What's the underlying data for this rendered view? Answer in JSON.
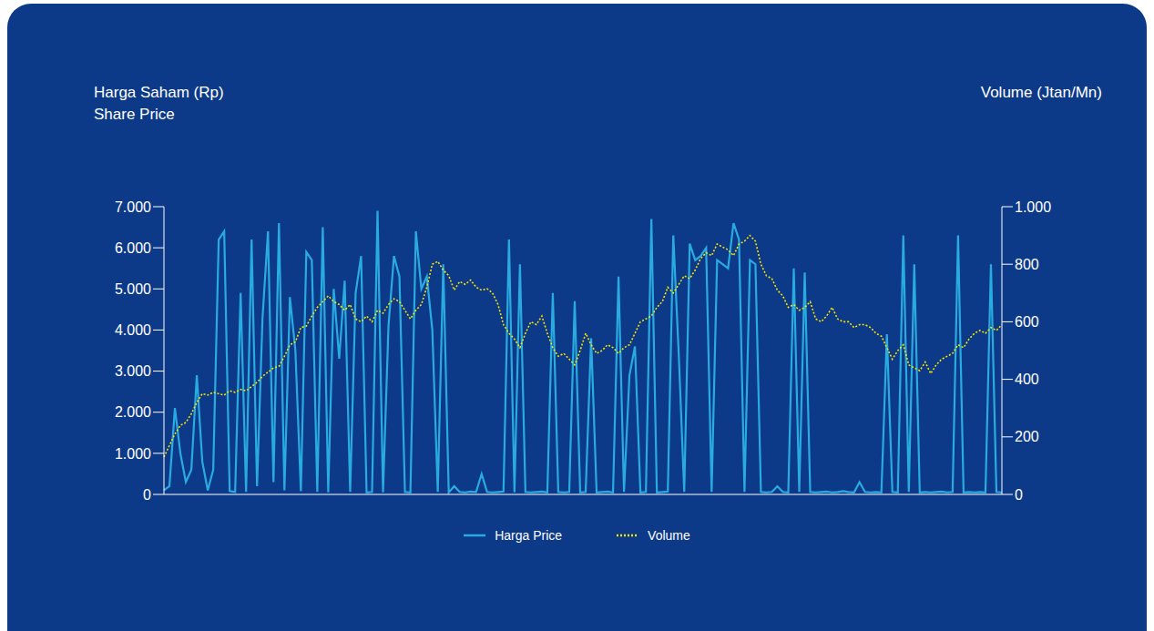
{
  "chart_data": {
    "type": "line",
    "y_label": "Harga Saham (Rp)",
    "y_label_en": "Share Price",
    "y2_label": "Volume (Jtan/Mn)",
    "categories": [
      null,
      null,
      null,
      null,
      null,
      null,
      null,
      null,
      null,
      null,
      null,
      null,
      null,
      null,
      null,
      null,
      null,
      null,
      null,
      null,
      null,
      null,
      null,
      null,
      null,
      null,
      null,
      null,
      null,
      null,
      null,
      null,
      null,
      null,
      null,
      null,
      null,
      null,
      null,
      null,
      null,
      null,
      null,
      null,
      null,
      null,
      null,
      null,
      null,
      null,
      null,
      null,
      null,
      null,
      null,
      null,
      null,
      null,
      null,
      null,
      null,
      null,
      null,
      null,
      null,
      null,
      null,
      null,
      null,
      null,
      null,
      null,
      null,
      null,
      null,
      null,
      null,
      null,
      null,
      null,
      null,
      null,
      null,
      null,
      null,
      null,
      null,
      null,
      null,
      null,
      null,
      null,
      null,
      null,
      null,
      null,
      null,
      null,
      null,
      null,
      null,
      null,
      null,
      null,
      null,
      null,
      null,
      null,
      null,
      null,
      null,
      null,
      null,
      null,
      null,
      null,
      null,
      null,
      null,
      null,
      null,
      null,
      null,
      null,
      null,
      null,
      null,
      null,
      null,
      null,
      null,
      null,
      null,
      null,
      null,
      null,
      null,
      null,
      null,
      null,
      null,
      null,
      null,
      null,
      null,
      null,
      null,
      null,
      null,
      null,
      null,
      null,
      null,
      null
    ],
    "series": [
      {
        "name": "Harga Price",
        "color": "#29abe2",
        "line_style": "solid",
        "values": [
          100,
          200,
          2100,
          1000,
          300,
          600,
          2900,
          800,
          100,
          600,
          6200,
          6400,
          80,
          60,
          4900,
          60,
          6200,
          200,
          4300,
          6400,
          300,
          6600,
          100,
          4800,
          3500,
          80,
          5900,
          5700,
          60,
          6500,
          50,
          5000,
          3300,
          5200,
          60,
          4900,
          5800,
          50,
          60,
          6900,
          50,
          4100,
          5800,
          5300,
          60,
          50,
          6400,
          5000,
          5300,
          4000,
          60,
          5600,
          50,
          200,
          60,
          50,
          70,
          60,
          500,
          60,
          50,
          60,
          70,
          6200,
          50,
          5600,
          60,
          50,
          60,
          70,
          50,
          4900,
          60,
          50,
          60,
          4700,
          50,
          60,
          3800,
          50,
          60,
          70,
          50,
          5300,
          60,
          2900,
          3600,
          50,
          60,
          6700,
          50,
          60,
          70,
          6300,
          3400,
          60,
          6100,
          5700,
          5800,
          6000,
          60,
          5700,
          5600,
          5500,
          6600,
          6200,
          60,
          5700,
          5600,
          60,
          50,
          60,
          200,
          60,
          50,
          5500,
          60,
          5400,
          60,
          50,
          60,
          70,
          50,
          60,
          80,
          60,
          50,
          300,
          60,
          50,
          60,
          50,
          3900,
          60,
          50,
          6300,
          60,
          5600,
          50,
          60,
          50,
          60,
          70,
          50,
          60,
          6300,
          50,
          60,
          50,
          60,
          50,
          5600,
          60,
          50
        ]
      },
      {
        "name": "Volume",
        "color": "#f5e400",
        "line_style": "dotted",
        "axis": "y2",
        "values": [
          130,
          170,
          210,
          240,
          250,
          280,
          320,
          350,
          345,
          355,
          350,
          345,
          360,
          355,
          365,
          360,
          375,
          390,
          410,
          425,
          440,
          445,
          480,
          520,
          530,
          580,
          585,
          620,
          650,
          670,
          690,
          670,
          660,
          640,
          660,
          610,
          600,
          620,
          600,
          640,
          630,
          660,
          680,
          670,
          640,
          610,
          640,
          660,
          720,
          800,
          810,
          780,
          760,
          710,
          740,
          730,
          745,
          720,
          710,
          715,
          700,
          660,
          590,
          560,
          540,
          510,
          560,
          600,
          590,
          620,
          560,
          510,
          480,
          490,
          470,
          450,
          500,
          560,
          520,
          490,
          500,
          520,
          510,
          490,
          510,
          520,
          560,
          600,
          610,
          620,
          650,
          670,
          720,
          700,
          730,
          760,
          750,
          780,
          820,
          840,
          830,
          870,
          860,
          850,
          830,
          870,
          880,
          900,
          880,
          800,
          760,
          750,
          710,
          690,
          650,
          660,
          640,
          650,
          670,
          610,
          600,
          620,
          650,
          610,
          600,
          600,
          580,
          590,
          590,
          580,
          560,
          550,
          510,
          470,
          500,
          520,
          450,
          440,
          430,
          460,
          420,
          450,
          470,
          480,
          490,
          520,
          510,
          540,
          560,
          570,
          560,
          580,
          570,
          590
        ]
      }
    ],
    "ylim": [
      0,
      7000
    ],
    "yticks": [
      0,
      {
        "value": 1000,
        "label": "1.000"
      },
      {
        "value": 2000,
        "label": "2.000"
      },
      {
        "value": 3000,
        "label": "3.000"
      },
      {
        "value": 4000,
        "label": "4.000"
      },
      {
        "value": 5000,
        "label": "5.000"
      },
      {
        "value": 6000,
        "label": "6.000"
      },
      {
        "value": 7000,
        "label": "7.000"
      }
    ],
    "y2lim": [
      0,
      1000
    ],
    "y2ticks": [
      0,
      200,
      400,
      600,
      800,
      {
        "value": 1000,
        "label": "1.000"
      }
    ],
    "grid": false,
    "legend": "bottom",
    "tick_labels": "y"
  }
}
